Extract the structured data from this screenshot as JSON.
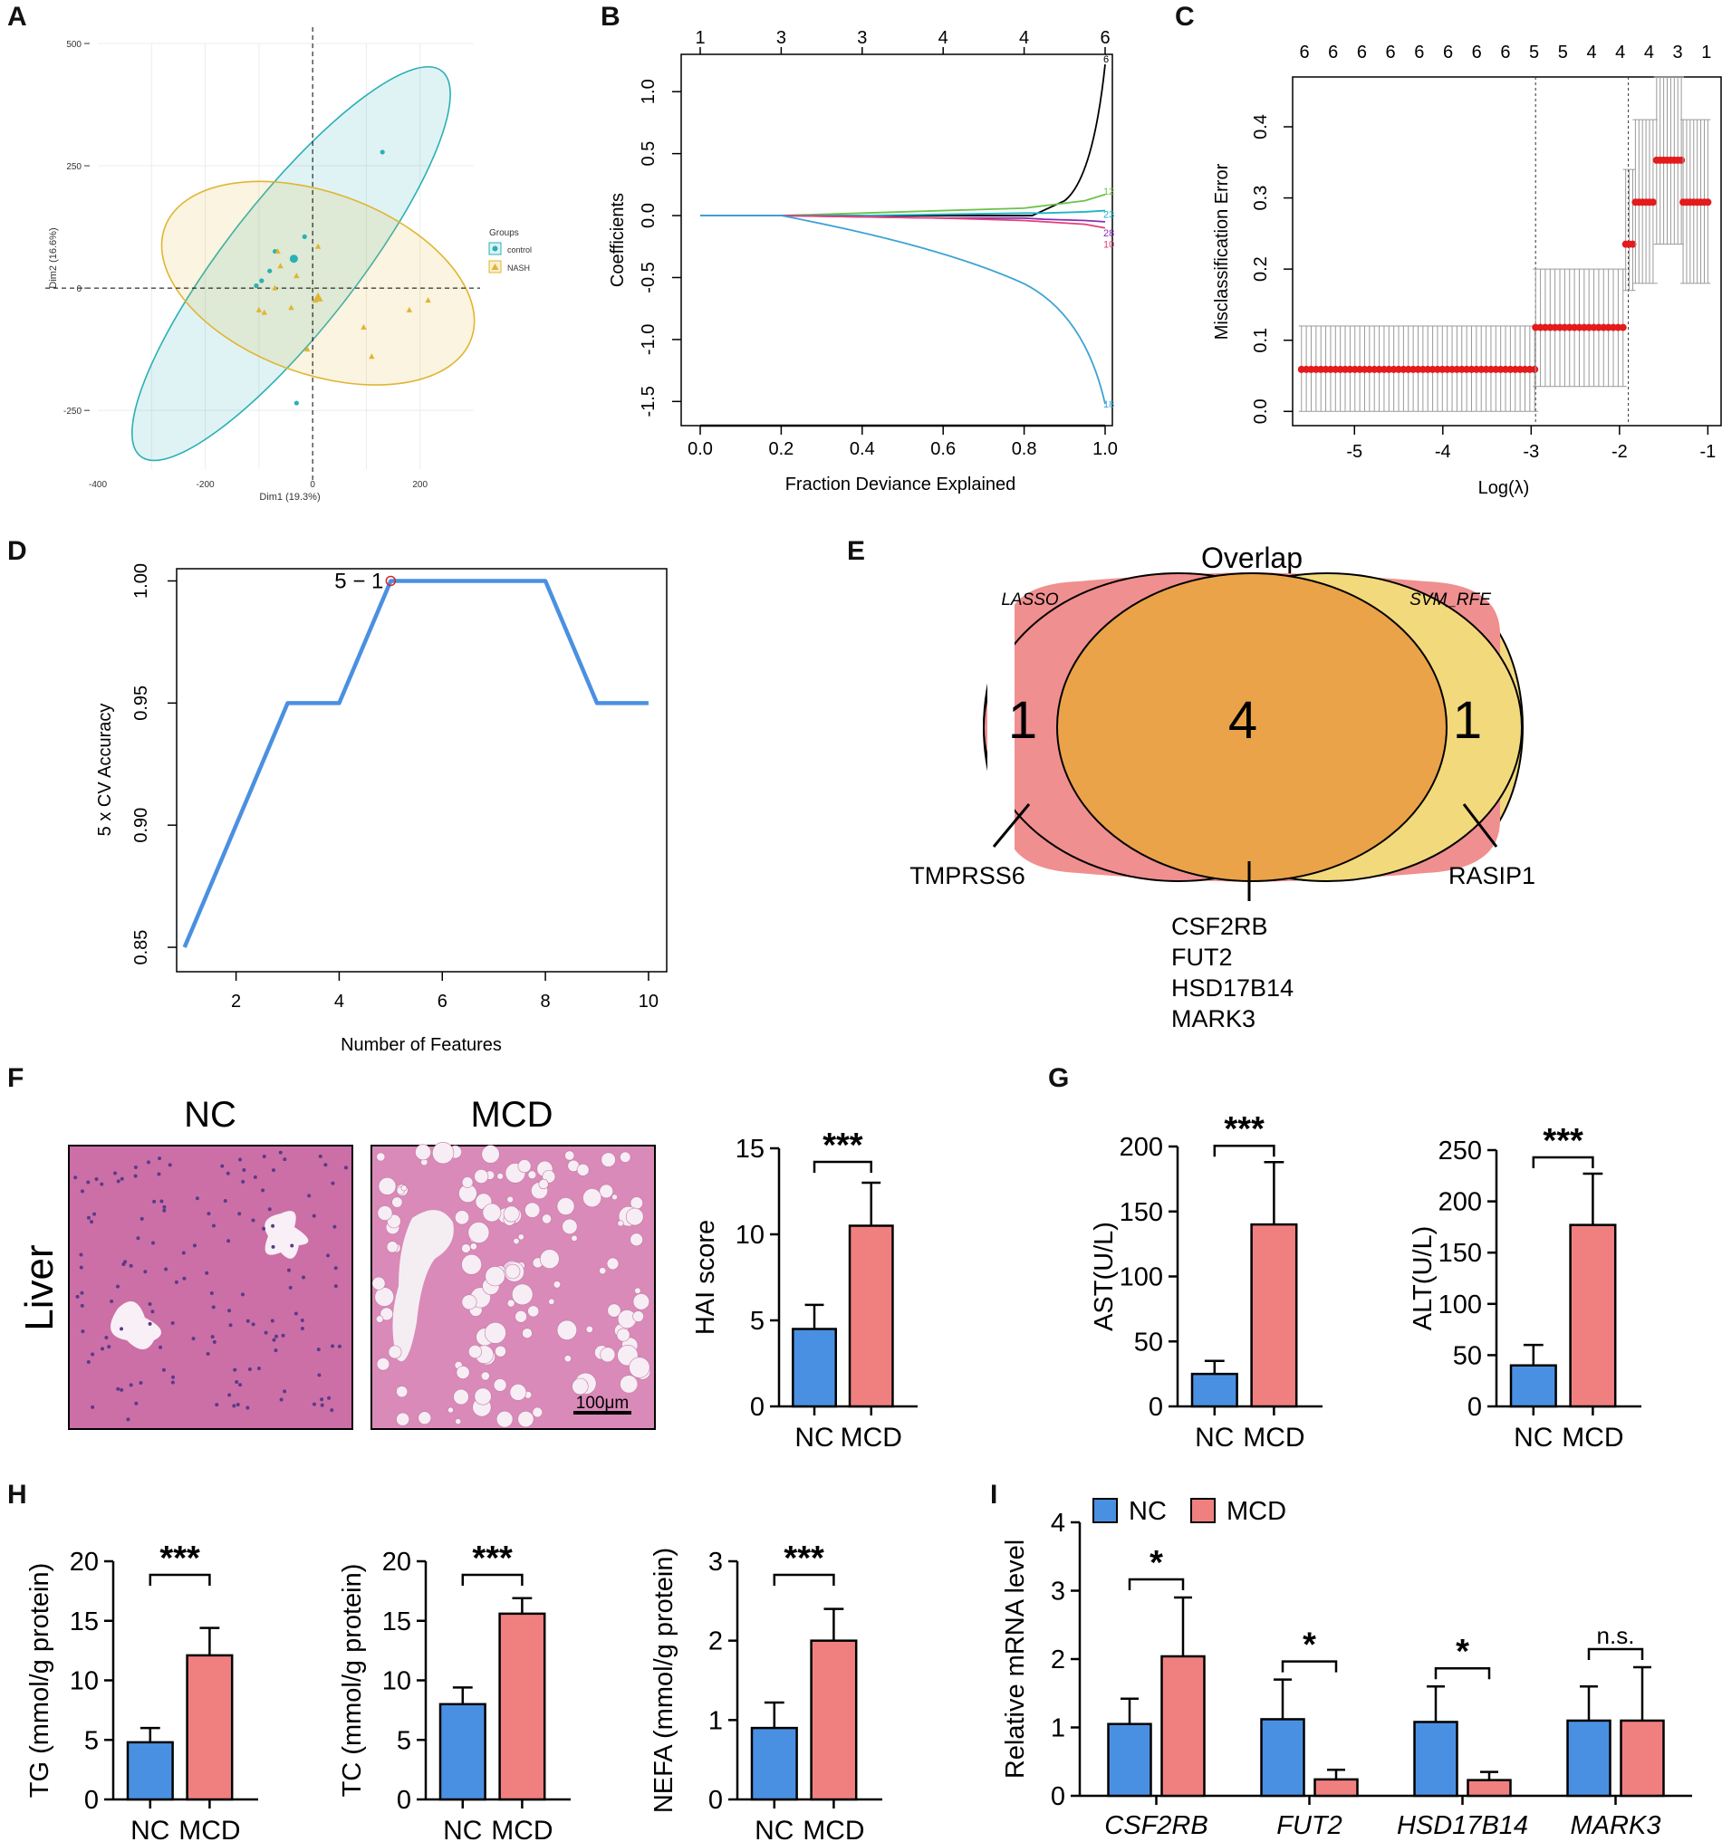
{
  "panel_labels": [
    "A",
    "B",
    "C",
    "D",
    "E",
    "F",
    "G",
    "H",
    "I"
  ],
  "colors": {
    "blue": "#4a90e2",
    "red": "#f08080",
    "teal": "#2ab0b5",
    "gold": "#e0b531",
    "lasso": "#f08f8f",
    "svm": "#f2d97c",
    "overlap": "#eaa349",
    "he": "#c86aa2"
  },
  "chart_data": [
    {
      "id": "A",
      "type": "scatter",
      "title": "",
      "xlabel": "Dim1 (19.3%)",
      "ylabel": "Dim2 (16.6%)",
      "xlim": [
        -400,
        300
      ],
      "ylim": [
        -370,
        500
      ],
      "xticks": [
        "-400",
        "-200",
        "0",
        "200"
      ],
      "yticks": [
        "500",
        "250",
        "0",
        "-250"
      ],
      "legend_title": "Groups",
      "legend": [
        "control",
        "NASH"
      ],
      "series": [
        {
          "name": "control",
          "points": [
            [
              130,
              278
            ],
            [
              -15,
              105
            ],
            [
              -70,
              75
            ],
            [
              -80,
              35
            ],
            [
              -95,
              15
            ],
            [
              -105,
              5
            ],
            [
              -30,
              -235
            ]
          ]
        },
        {
          "name": "NASH",
          "points": [
            [
              -65,
              75
            ],
            [
              10,
              85
            ],
            [
              -60,
              45
            ],
            [
              -30,
              25
            ],
            [
              -70,
              0
            ],
            [
              -100,
              -45
            ],
            [
              -90,
              -50
            ],
            [
              -40,
              -40
            ],
            [
              5,
              -25
            ],
            [
              215,
              -25
            ],
            [
              180,
              -45
            ],
            [
              95,
              -80
            ],
            [
              -10,
              -125
            ],
            [
              110,
              -140
            ]
          ]
        }
      ]
    },
    {
      "id": "B",
      "type": "line",
      "xlabel": "Fraction Deviance Explained",
      "ylabel": "Coefficients",
      "xlim": [
        0,
        1
      ],
      "ylim": [
        -1.6,
        1.25
      ],
      "xticks": [
        "0.0",
        "0.2",
        "0.4",
        "0.6",
        "0.8",
        "1.0"
      ],
      "yticks": [
        "1.0",
        "0.5",
        "0.0",
        "-0.5",
        "-1.0",
        "-1.5"
      ],
      "top_ticks": [
        "1",
        "3",
        "3",
        "4",
        "4",
        "6"
      ],
      "series": [
        {
          "name": "6",
          "end_label": "6",
          "values": [
            0.0,
            0.0,
            0.0,
            0.0,
            0.0,
            0.0,
            0.12,
            1.22
          ]
        },
        {
          "name": "12",
          "end_label": "12",
          "values": [
            0.0,
            0.0,
            0.02,
            0.04,
            0.06,
            0.08,
            0.12,
            0.17
          ]
        },
        {
          "name": "23",
          "end_label": "23",
          "values": [
            0.0,
            0.0,
            0.0,
            0.01,
            0.02,
            0.02,
            0.03,
            0.04
          ]
        },
        {
          "name": "28",
          "end_label": "28",
          "values": [
            0.0,
            0.0,
            -0.01,
            -0.02,
            -0.02,
            -0.03,
            -0.04,
            -0.05
          ]
        },
        {
          "name": "10",
          "end_label": "10",
          "values": [
            0.0,
            0.0,
            -0.01,
            -0.02,
            -0.04,
            -0.05,
            -0.07,
            -0.1
          ]
        },
        {
          "name": "18",
          "end_label": "18",
          "values": [
            0.0,
            0.0,
            -0.13,
            -0.26,
            -0.38,
            -0.52,
            -0.73,
            -1.52
          ]
        }
      ],
      "x": [
        0.0,
        0.2,
        0.4,
        0.6,
        0.8,
        0.85,
        0.95,
        1.0
      ]
    },
    {
      "id": "C",
      "type": "scatter",
      "xlabel": "Log(λ)",
      "ylabel": "Misclassification Error",
      "xlim": [
        -5.7,
        -0.85
      ],
      "ylim": [
        -0.02,
        0.47
      ],
      "xticks": [
        "-5",
        "-4",
        "-3",
        "-2",
        "-1"
      ],
      "yticks": [
        "0.0",
        "0.1",
        "0.2",
        "0.3",
        "0.4"
      ],
      "top_ticks": [
        "6",
        "6",
        "6",
        "6",
        "6",
        "6",
        "6",
        "6",
        "5",
        "5",
        "4",
        "4",
        "4",
        "3",
        "1"
      ],
      "vlines": [
        -2.95,
        -1.9
      ],
      "segments": [
        {
          "from": -5.6,
          "to": -2.95,
          "y": 0.059,
          "lo": 0.0,
          "hi": 0.12
        },
        {
          "from": -2.95,
          "to": -1.95,
          "y": 0.118,
          "lo": 0.035,
          "hi": 0.2
        },
        {
          "from": -1.93,
          "to": -1.85,
          "y": 0.235,
          "lo": 0.17,
          "hi": 0.34
        },
        {
          "from": -1.82,
          "to": -1.6,
          "y": 0.294,
          "lo": 0.18,
          "hi": 0.41
        },
        {
          "from": -1.58,
          "to": -1.3,
          "y": 0.353,
          "lo": 0.235,
          "hi": 0.47
        },
        {
          "from": -1.28,
          "to": -1.0,
          "y": 0.294,
          "lo": 0.18,
          "hi": 0.41
        }
      ]
    },
    {
      "id": "D",
      "type": "line",
      "xlabel": "Number of Features",
      "ylabel": "5 x CV Accuracy",
      "x": [
        1,
        2,
        3,
        4,
        5,
        6,
        7,
        8,
        9,
        10
      ],
      "values": [
        0.85,
        0.9,
        0.95,
        0.95,
        1.0,
        1.0,
        1.0,
        1.0,
        0.95,
        0.95
      ],
      "xlim": [
        0.9,
        10.3
      ],
      "ylim": [
        0.84,
        1.005
      ],
      "xticks": [
        "2",
        "4",
        "6",
        "8",
        "10"
      ],
      "yticks": [
        "0.85",
        "0.90",
        "0.95",
        "1.00"
      ],
      "annotation": "5 − 1"
    },
    {
      "id": "E",
      "type": "venn",
      "title": "Overlap",
      "sets": [
        "LASSO",
        "SVM_RFE"
      ],
      "counts": {
        "only_a": "1",
        "both": "4",
        "only_b": "1"
      },
      "labels": {
        "only_a": "TMPRSS6",
        "only_b": "RASIP1",
        "both": [
          "CSF2RB",
          "FUT2",
          "HSD17B14",
          "MARK3"
        ]
      }
    },
    {
      "id": "F",
      "type": "bar",
      "ylabel": "HAI score",
      "categories": [
        "NC",
        "MCD"
      ],
      "values": [
        4.5,
        10.5
      ],
      "errors": [
        1.4,
        2.5
      ],
      "ylim": [
        0,
        15
      ],
      "yticks": [
        "0",
        "5",
        "10",
        "15"
      ],
      "significance": "***",
      "image_titles": [
        "NC",
        "MCD"
      ],
      "row_label": "Liver",
      "scalebar": "100μm"
    },
    {
      "id": "G1",
      "type": "bar",
      "ylabel": "AST(U/L)",
      "categories": [
        "NC",
        "MCD"
      ],
      "values": [
        25,
        140
      ],
      "errors": [
        10,
        48
      ],
      "ylim": [
        0,
        200
      ],
      "yticks": [
        "0",
        "50",
        "100",
        "150",
        "200"
      ],
      "significance": "***"
    },
    {
      "id": "G2",
      "type": "bar",
      "ylabel": "ALT(U/L)",
      "categories": [
        "NC",
        "MCD"
      ],
      "values": [
        40,
        177
      ],
      "errors": [
        20,
        50
      ],
      "ylim": [
        0,
        250
      ],
      "yticks": [
        "0",
        "50",
        "100",
        "150",
        "200",
        "250"
      ],
      "significance": "***"
    },
    {
      "id": "H1",
      "type": "bar",
      "ylabel": "TG (mmol/g protein)",
      "categories": [
        "NC",
        "MCD"
      ],
      "values": [
        4.8,
        12.1
      ],
      "errors": [
        1.2,
        2.3
      ],
      "ylim": [
        0,
        20
      ],
      "yticks": [
        "0",
        "5",
        "10",
        "15",
        "20"
      ],
      "significance": "***"
    },
    {
      "id": "H2",
      "type": "bar",
      "ylabel": "TC (mmol/g protein)",
      "categories": [
        "NC",
        "MCD"
      ],
      "values": [
        8.0,
        15.6
      ],
      "errors": [
        1.4,
        1.3
      ],
      "ylim": [
        0,
        20
      ],
      "yticks": [
        "0",
        "5",
        "10",
        "15",
        "20"
      ],
      "significance": "***"
    },
    {
      "id": "H3",
      "type": "bar",
      "ylabel": "NEFA (mmol/g protein)",
      "categories": [
        "NC",
        "MCD"
      ],
      "values": [
        0.9,
        2.0
      ],
      "errors": [
        0.32,
        0.4
      ],
      "ylim": [
        0,
        3
      ],
      "yticks": [
        "0",
        "1",
        "2",
        "3"
      ],
      "significance": "***"
    },
    {
      "id": "I",
      "type": "bar",
      "ylabel": "Relative mRNA level",
      "categories": [
        "CSF2RB",
        "FUT2",
        "HSD17B14",
        "MARK3"
      ],
      "series": [
        {
          "name": "NC",
          "values": [
            1.05,
            1.12,
            1.08,
            1.1
          ],
          "errors": [
            0.37,
            0.58,
            0.52,
            0.5
          ]
        },
        {
          "name": "MCD",
          "values": [
            2.04,
            0.24,
            0.23,
            1.1
          ],
          "errors": [
            0.86,
            0.14,
            0.12,
            0.78
          ]
        }
      ],
      "ylim": [
        0,
        4
      ],
      "yticks": [
        "0",
        "1",
        "2",
        "3",
        "4"
      ],
      "significance": [
        "*",
        "*",
        "*",
        "n.s."
      ]
    }
  ]
}
